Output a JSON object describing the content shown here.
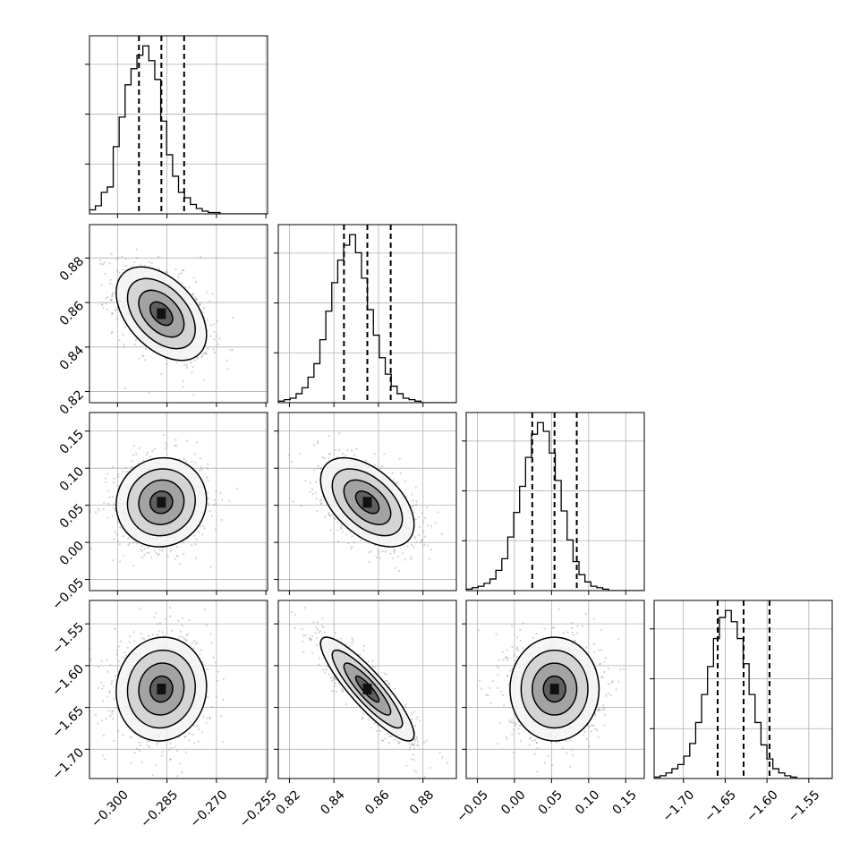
{
  "chart_data": {
    "type": "corner",
    "grid": true,
    "parameters": [
      "",
      "",
      "",
      ""
    ],
    "ranges": [
      [
        -0.3085,
        -0.2545
      ],
      [
        0.815,
        0.895
      ],
      [
        -0.065,
        0.175
      ],
      [
        -1.735,
        -1.522
      ]
    ],
    "ticks": [
      [
        {
          "v": -0.3,
          "label": "−0.300"
        },
        {
          "v": -0.285,
          "label": "−0.285"
        },
        {
          "v": -0.27,
          "label": "−0.270"
        },
        {
          "v": -0.255,
          "label": "−0.255"
        }
      ],
      [
        {
          "v": 0.82,
          "label": "0.82"
        },
        {
          "v": 0.84,
          "label": "0.84"
        },
        {
          "v": 0.86,
          "label": "0.86"
        },
        {
          "v": 0.88,
          "label": "0.88"
        }
      ],
      [
        {
          "v": -0.05,
          "label": "−0.05"
        },
        {
          "v": 0.0,
          "label": "0.00"
        },
        {
          "v": 0.05,
          "label": "0.05"
        },
        {
          "v": 0.1,
          "label": "0.10"
        },
        {
          "v": 0.15,
          "label": "0.15"
        }
      ],
      [
        {
          "v": -1.7,
          "label": "−1.70"
        },
        {
          "v": -1.65,
          "label": "−1.65"
        },
        {
          "v": -1.6,
          "label": "−1.60"
        },
        {
          "v": -1.55,
          "label": "−1.55"
        }
      ]
    ],
    "quantiles_16_50_84": [
      [
        -0.2935,
        -0.2867,
        -0.2798
      ],
      [
        0.8445,
        0.855,
        0.8655
      ],
      [
        0.024,
        0.054,
        0.084
      ],
      [
        -1.659,
        -1.628,
        -1.597
      ]
    ],
    "marginal_histograms": [
      {
        "bins_start": -0.3085,
        "bin_width": 0.0018,
        "counts": [
          3,
          6,
          16,
          20,
          50,
          72,
          96,
          108,
          118,
          125,
          114,
          100,
          69,
          44,
          28,
          16,
          12,
          7,
          4,
          2,
          1,
          1,
          0,
          0,
          0,
          0,
          0,
          0,
          0,
          0
        ]
      },
      {
        "bins_start": 0.815,
        "bin_width": 0.00267,
        "counts": [
          1,
          2,
          3,
          6,
          10,
          17,
          26,
          42,
          61,
          80,
          95,
          105,
          112,
          100,
          83,
          62,
          45,
          30,
          19,
          11,
          6,
          3,
          2,
          1,
          0,
          0,
          0,
          0,
          0,
          0
        ]
      },
      {
        "bins_start": -0.065,
        "bin_width": 0.008,
        "counts": [
          1,
          2,
          3,
          5,
          8,
          14,
          22,
          37,
          54,
          72,
          92,
          108,
          116,
          110,
          95,
          76,
          55,
          35,
          20,
          11,
          6,
          3,
          2,
          1,
          0,
          0,
          0,
          0,
          0,
          0
        ]
      },
      {
        "bins_start": -1.735,
        "bin_width": 0.0071,
        "counts": [
          1,
          2,
          4,
          7,
          10,
          16,
          25,
          40,
          60,
          80,
          100,
          115,
          120,
          112,
          100,
          82,
          60,
          40,
          24,
          14,
          7,
          4,
          2,
          1,
          0,
          0,
          0,
          0,
          0,
          0
        ]
      }
    ],
    "pair_correlations": [
      {
        "row": 1,
        "col": 0,
        "rho": -0.45
      },
      {
        "row": 2,
        "col": 0,
        "rho": 0.05
      },
      {
        "row": 2,
        "col": 1,
        "rho": -0.5
      },
      {
        "row": 3,
        "col": 0,
        "rho": 0.05
      },
      {
        "row": 3,
        "col": 1,
        "rho": -0.88
      },
      {
        "row": 3,
        "col": 2,
        "rho": 0.0
      }
    ],
    "contour_levels_sigma": [
      0.5,
      1.0,
      1.5,
      2.0
    ]
  },
  "colors": {
    "axis": "#000000",
    "grid": "#b0b0b0",
    "points": "#808080",
    "histogram": "#000000",
    "contour": "#000000"
  }
}
